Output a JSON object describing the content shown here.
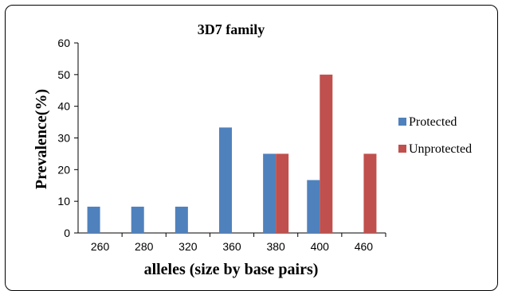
{
  "chart_data": {
    "type": "bar",
    "title": "3D7 family",
    "xlabel": "alleles (size by base pairs)",
    "ylabel": "Prevalence(%)",
    "categories": [
      "260",
      "280",
      "320",
      "360",
      "380",
      "400",
      "460"
    ],
    "series": [
      {
        "name": "Protected",
        "color": "#4F81BD",
        "values": [
          8.3,
          8.3,
          8.3,
          33.3,
          25,
          16.7,
          0
        ]
      },
      {
        "name": "Unprotected",
        "color": "#C0504D",
        "values": [
          0,
          0,
          0,
          0,
          25,
          50,
          25
        ]
      }
    ],
    "ylim": [
      0,
      60
    ],
    "yticks": [
      "0",
      "10",
      "20",
      "30",
      "40",
      "50",
      "60"
    ],
    "grid": false,
    "legend": "right"
  }
}
